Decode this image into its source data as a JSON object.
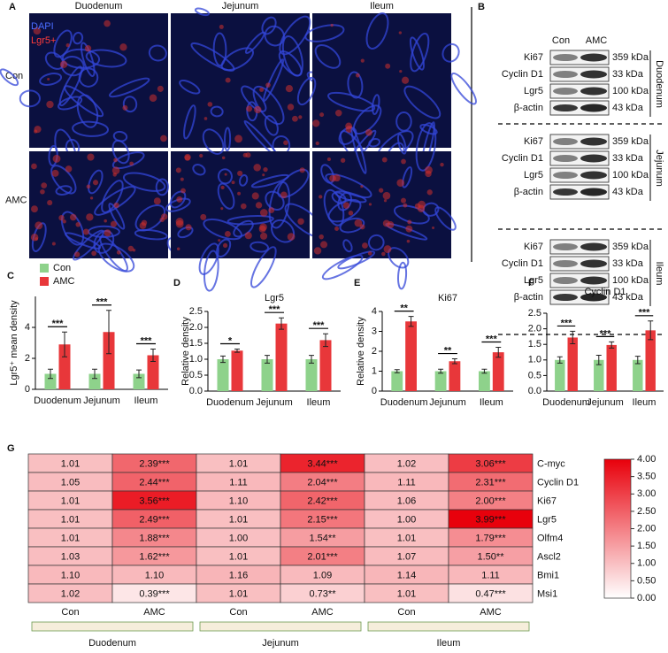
{
  "panel_labels": [
    "A",
    "B",
    "C",
    "D",
    "E",
    "F",
    "G"
  ],
  "panel_a": {
    "columns": [
      "Duodenum",
      "Jejunum",
      "Ileum"
    ],
    "rows": [
      "Con",
      "AMC"
    ],
    "channels": [
      "DAPI",
      "Lgr5+"
    ]
  },
  "panel_b": {
    "lanes": [
      "Con",
      "AMC"
    ],
    "groups": [
      {
        "name": "Duodenum",
        "proteins": [
          "Ki67",
          "Cyclin D1",
          "Lgr5",
          "β-actin"
        ],
        "sizes": [
          "359 kDa",
          "33 kDa",
          "100 kDa",
          "43 kDa"
        ]
      },
      {
        "name": "Jejunum",
        "proteins": [
          "Ki67",
          "Cyclin D1",
          "Lgr5",
          "β-actin"
        ],
        "sizes": [
          "359 kDa",
          "33 kDa",
          "100 kDa",
          "43 kDa"
        ]
      },
      {
        "name": "Ileum",
        "proteins": [
          "Ki67",
          "Cyclin D1",
          "Lgr5",
          "β-actin"
        ],
        "sizes": [
          "359 kDa",
          "33 kDa",
          "100 kDa",
          "43 kDa"
        ]
      }
    ]
  },
  "chart_data": [
    {
      "type": "bar",
      "ylabel": "Lgr5⁺ mean density",
      "categories": [
        "Duodenum",
        "Jejunum",
        "Ileum"
      ],
      "series": [
        {
          "name": "Con",
          "color": "#8ed28b",
          "values": [
            1,
            1,
            1
          ],
          "errors": [
            0.3,
            0.3,
            0.25
          ]
        },
        {
          "name": "AMC",
          "color": "#e8373a",
          "values": [
            2.9,
            3.7,
            2.2
          ],
          "errors": [
            0.8,
            1.4,
            0.4
          ]
        }
      ],
      "significance": [
        "***",
        "***",
        "***"
      ],
      "ylim": [
        0,
        6
      ],
      "yticks": [
        0,
        2,
        4
      ],
      "legend": "top-left"
    },
    {
      "type": "bar",
      "title": "Lgr5",
      "ylabel": "Relative density",
      "categories": [
        "Duodenum",
        "Jejunum",
        "Ileum"
      ],
      "series": [
        {
          "color": "#8ed28b",
          "values": [
            1.0,
            1.0,
            1.0
          ],
          "errors": [
            0.1,
            0.12,
            0.12
          ]
        },
        {
          "color": "#e8373a",
          "values": [
            1.27,
            2.12,
            1.6
          ],
          "errors": [
            0.05,
            0.18,
            0.2
          ]
        }
      ],
      "significance": [
        "*",
        "***",
        "***"
      ],
      "ylim": [
        0,
        2.5
      ],
      "yticks": [
        {
          "value": 0,
          "label": "0.0"
        },
        {
          "value": 0.5,
          "label": "0.5"
        },
        {
          "value": 1,
          "label": "1.0"
        },
        {
          "value": 1.5,
          "label": "1.5"
        },
        {
          "value": 2,
          "label": "2.0"
        },
        {
          "value": 2.5,
          "label": "2.5"
        }
      ]
    },
    {
      "type": "bar",
      "title": "Ki67",
      "ylabel": "Relative density",
      "categories": [
        "Duodenum",
        "Jejunum",
        "Ileum"
      ],
      "series": [
        {
          "color": "#8ed28b",
          "values": [
            1,
            1,
            1
          ],
          "errors": [
            0.08,
            0.1,
            0.1
          ]
        },
        {
          "color": "#e8373a",
          "values": [
            3.5,
            1.5,
            1.95
          ],
          "errors": [
            0.25,
            0.12,
            0.25
          ]
        }
      ],
      "significance": [
        "**",
        "**",
        "***"
      ],
      "ylim": [
        0,
        4
      ],
      "yticks": [
        0,
        1,
        2,
        3,
        4
      ]
    },
    {
      "type": "bar",
      "title": "Cyclin D1",
      "categories": [
        "Duodenum",
        "Jejunum",
        "Ileum"
      ],
      "series": [
        {
          "color": "#8ed28b",
          "values": [
            1,
            1,
            1
          ],
          "errors": [
            0.1,
            0.15,
            0.12
          ]
        },
        {
          "color": "#e8373a",
          "values": [
            1.72,
            1.48,
            1.95
          ],
          "errors": [
            0.2,
            0.1,
            0.3
          ]
        }
      ],
      "significance": [
        "***",
        "***",
        "***"
      ],
      "ylim": [
        0,
        2.5
      ],
      "yticks": [
        {
          "value": 0,
          "label": "0.0"
        },
        {
          "value": 0.5,
          "label": "0.5"
        },
        {
          "value": 1,
          "label": "1.0"
        },
        {
          "value": 1.5,
          "label": "1.5"
        },
        {
          "value": 2,
          "label": "2.0"
        },
        {
          "value": 2.5,
          "label": "2.5"
        }
      ]
    },
    {
      "type": "heatmap",
      "rows": [
        "C-myc",
        "Cyclin D1",
        "Ki67",
        "Lgr5",
        "Olfm4",
        "Ascl2",
        "Bmi1",
        "Msi1"
      ],
      "columns": [
        "Con",
        "AMC",
        "Con",
        "AMC",
        "Con",
        "AMC"
      ],
      "groups": [
        "Duodenum",
        "Jejunum",
        "Ileum"
      ],
      "values": [
        [
          1.01,
          2.39,
          1.01,
          3.44,
          1.02,
          3.06
        ],
        [
          1.05,
          2.44,
          1.11,
          2.04,
          1.11,
          2.31
        ],
        [
          1.01,
          3.56,
          1.1,
          2.42,
          1.06,
          2.0
        ],
        [
          1.01,
          2.49,
          1.01,
          2.15,
          1.0,
          3.99
        ],
        [
          1.01,
          1.88,
          1.0,
          1.54,
          1.01,
          1.79
        ],
        [
          1.03,
          1.62,
          1.01,
          2.01,
          1.07,
          1.5
        ],
        [
          1.1,
          1.1,
          1.16,
          1.09,
          1.14,
          1.11
        ],
        [
          1.02,
          0.39,
          1.01,
          0.73,
          1.01,
          0.47
        ]
      ],
      "value_labels": [
        [
          "1.01",
          "2.39***",
          "1.01",
          "3.44***",
          "1.02",
          "3.06***"
        ],
        [
          "1.05",
          "2.44***",
          "1.11",
          "2.04***",
          "1.11",
          "2.31***"
        ],
        [
          "1.01",
          "3.56***",
          "1.10",
          "2.42***",
          "1.06",
          "2.00***"
        ],
        [
          "1.01",
          "2.49***",
          "1.01",
          "2.15***",
          "1.00",
          "3.99***"
        ],
        [
          "1.01",
          "1.88***",
          "1.00",
          "1.54**",
          "1.01",
          "1.79***"
        ],
        [
          "1.03",
          "1.62***",
          "1.01",
          "2.01***",
          "1.07",
          "1.50**"
        ],
        [
          "1.10",
          "1.10",
          "1.16",
          "1.09",
          "1.14",
          "1.11"
        ],
        [
          "1.02",
          "0.39***",
          "1.01",
          "0.73**",
          "1.01",
          "0.47***"
        ]
      ],
      "clim": [
        0,
        4
      ],
      "colors": [
        "#ffffff",
        "#e8000b"
      ],
      "cticks": [
        {
          "value": 0,
          "label": "0.00"
        },
        {
          "value": 0.5,
          "label": "0.50"
        },
        {
          "value": 1,
          "label": "1.00"
        },
        {
          "value": 1.5,
          "label": "1.50"
        },
        {
          "value": 2,
          "label": "2.00"
        },
        {
          "value": 2.5,
          "label": "2.50"
        },
        {
          "value": 3,
          "label": "3.00"
        },
        {
          "value": 3.5,
          "label": "3.50"
        },
        {
          "value": 4,
          "label": "4.00"
        }
      ]
    }
  ]
}
